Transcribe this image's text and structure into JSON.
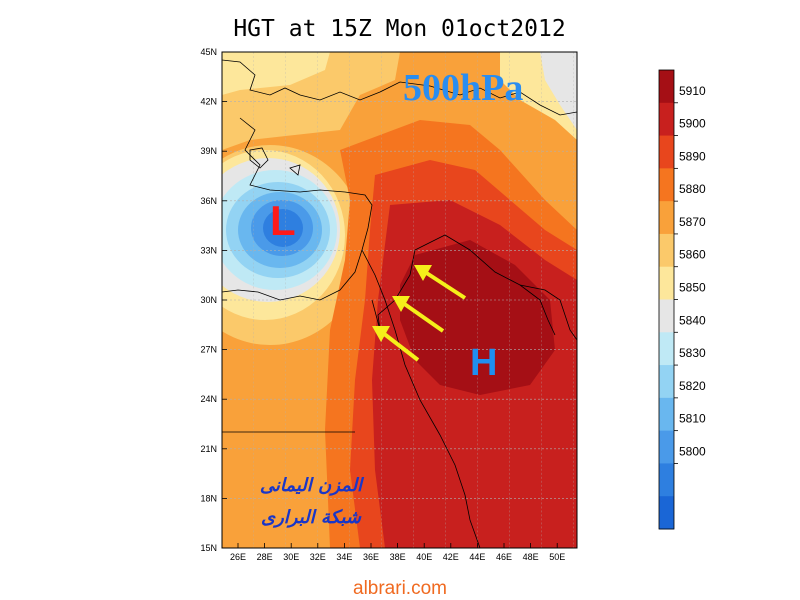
{
  "title": "HGT at 15Z Mon 01oct2012",
  "level_label": "500hPa",
  "low_marker": "L",
  "high_marker": "H",
  "watermark": {
    "line1": "المزن اليمانى",
    "line2": "شبكة البرارى"
  },
  "footer": "albrari.com",
  "lat_labels": [
    "45N",
    "42N",
    "39N",
    "36N",
    "33N",
    "30N",
    "27N",
    "24N",
    "21N",
    "18N",
    "15N"
  ],
  "lon_labels": [
    "26E",
    "28E",
    "30E",
    "32E",
    "34E",
    "36E",
    "38E",
    "40E",
    "42E",
    "44E",
    "46E",
    "48E",
    "50E"
  ],
  "colorbar": {
    "levels": [
      "5910",
      "5900",
      "5890",
      "5880",
      "5870",
      "5860",
      "5850",
      "5840",
      "5830",
      "5820",
      "5810",
      "5800"
    ],
    "colors": [
      "#a50f15",
      "#c8201e",
      "#e8461d",
      "#f5751f",
      "#f9a13a",
      "#fbc96a",
      "#fde79b",
      "#e6e6e6",
      "#bfe9f5",
      "#93d3f3",
      "#69b7ef",
      "#4a9ae9",
      "#2e7fe0",
      "#1a66d6"
    ]
  },
  "arrow_color": "#f5ef1a"
}
